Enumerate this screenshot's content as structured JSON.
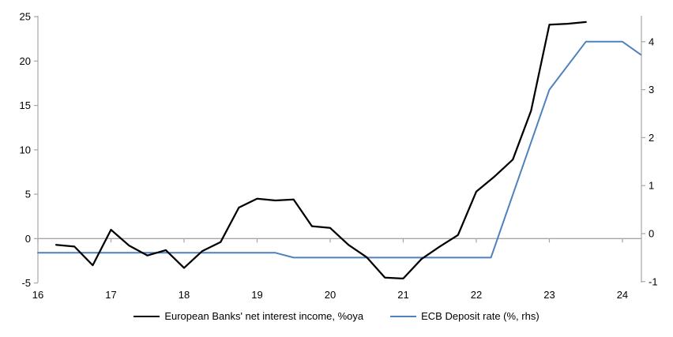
{
  "chart_data": {
    "type": "line",
    "title": "",
    "background": "#ffffff",
    "axis_color": "#a6a6a6",
    "text_color": "#000000",
    "grid": "zero-line-only",
    "legend_position": "bottom",
    "x_axis": {
      "ticks": [
        16,
        17,
        18,
        19,
        20,
        21,
        22,
        23,
        24
      ],
      "range": [
        16,
        24.26
      ]
    },
    "left_axis": {
      "ticks": [
        25,
        20,
        15,
        10,
        5,
        0,
        -5
      ],
      "range": [
        -4.95,
        25.1
      ]
    },
    "right_axis": {
      "ticks": [
        4,
        3,
        2,
        1,
        0,
        -1
      ],
      "range": [
        -1.02,
        4.54
      ]
    },
    "series": [
      {
        "name": "European Banks' net interest income, %oya",
        "axis": "left",
        "color": "#000000",
        "stroke_width": 2.25,
        "points": [
          [
            16.25,
            -0.7
          ],
          [
            16.5,
            -0.9
          ],
          [
            16.75,
            -3.0
          ],
          [
            17.0,
            1.0
          ],
          [
            17.25,
            -0.8
          ],
          [
            17.5,
            -1.9
          ],
          [
            17.75,
            -1.3
          ],
          [
            18.0,
            -3.3
          ],
          [
            18.25,
            -1.4
          ],
          [
            18.5,
            -0.4
          ],
          [
            18.75,
            3.5
          ],
          [
            19.0,
            4.5
          ],
          [
            19.25,
            4.3
          ],
          [
            19.5,
            4.4
          ],
          [
            19.75,
            1.4
          ],
          [
            20.0,
            1.2
          ],
          [
            20.25,
            -0.7
          ],
          [
            20.5,
            -2.1
          ],
          [
            20.75,
            -4.4
          ],
          [
            21.0,
            -4.5
          ],
          [
            21.25,
            -2.3
          ],
          [
            21.5,
            -0.9
          ],
          [
            21.75,
            0.4
          ],
          [
            22.0,
            5.3
          ],
          [
            22.25,
            7.0
          ],
          [
            22.5,
            8.9
          ],
          [
            22.75,
            14.4
          ],
          [
            23.0,
            24.1
          ],
          [
            23.25,
            24.2
          ],
          [
            23.5,
            24.4
          ]
        ]
      },
      {
        "name": "ECB Deposit rate (%, rhs)",
        "axis": "right",
        "color": "#4f81bd",
        "stroke_width": 2,
        "points": [
          [
            16.0,
            -0.4
          ],
          [
            19.25,
            -0.4
          ],
          [
            19.5,
            -0.5
          ],
          [
            22.2,
            -0.5
          ],
          [
            23.0,
            3.0
          ],
          [
            23.5,
            4.0
          ],
          [
            24.0,
            4.0
          ],
          [
            24.25,
            3.73
          ]
        ]
      }
    ]
  }
}
